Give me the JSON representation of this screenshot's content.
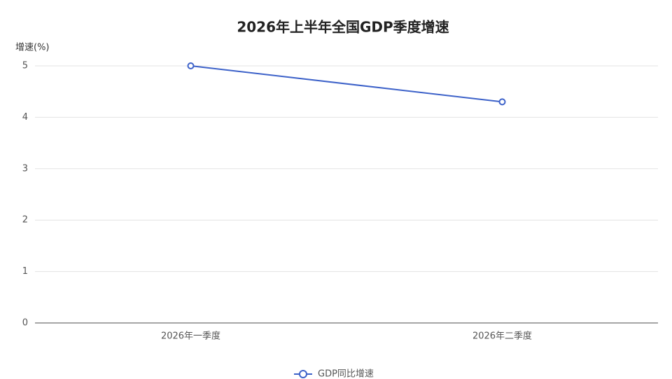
{
  "chart_data": {
    "type": "line",
    "title": "2026年上半年全国GDP季度增速",
    "y_label": "增速(%)",
    "categories": [
      "2026年一季度",
      "2026年二季度"
    ],
    "series": [
      {
        "name": "GDP同比增速",
        "color": "#3d62c9",
        "values": [
          5.0,
          4.3
        ]
      }
    ],
    "ylim": [
      0,
      5
    ],
    "yticks": [
      0,
      1,
      2,
      3,
      4,
      5
    ],
    "grid": true,
    "legend": "bottom"
  }
}
